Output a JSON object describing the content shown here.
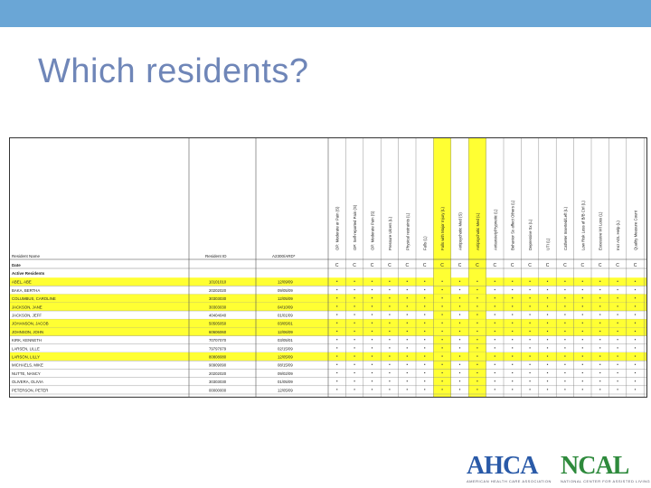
{
  "slide": {
    "title": "Which residents?",
    "topbar_color": "#6aa6d6"
  },
  "sheet": {
    "header_labels": {
      "name": "Resident Name",
      "id": "Resident ID",
      "date": "A2300/ARD*",
      "group_date": "Date",
      "group_active": "Active Residents"
    },
    "column_headers": [
      "OP: Moderate or Pain (S)",
      "OP: Self-reported Pain (S)",
      "OP: Moderate Pain (S)",
      "Pressure Ulcers (L)",
      "Physical restraints (L)",
      "Falls (L)",
      "Falls with Major Injury (L)",
      "Antipsychotic Med (S)",
      "Antipsychotic Med (L)",
      "Antianxiety/Hypnotic (L)",
      "Behavior Sx affect Others (L)",
      "Depressive Sx (L)",
      "UTI (L)",
      "Catheter Inserted/Left (L)",
      "Low Risk Loss of B/B Ctrl (L)",
      "Excessive Wt Loss (L)",
      "Incr ADL Help (L)",
      "Quality Measure Count"
    ],
    "column_row_code": [
      "C",
      "C",
      "C",
      "C",
      "C",
      "C",
      "C",
      "C",
      "C",
      "C",
      "C",
      "C",
      "C",
      "C",
      "C",
      "C",
      "C",
      "C"
    ],
    "highlight_color": "#ffff33",
    "residents": [
      {
        "name": "ABEL, ABE",
        "id": "10101010",
        "date": "12/09/09",
        "hl": true
      },
      {
        "name": "BAKA, BERTHA",
        "id": "20202020",
        "date": "09/05/09",
        "hl": false
      },
      {
        "name": "COLUMBUS, CAROLINE",
        "id": "30303030",
        "date": "12/05/09",
        "hl": true
      },
      {
        "name": "JACKSON, JANE",
        "id": "30303030",
        "date": "04/10/09",
        "hl": true
      },
      {
        "name": "JACKSON, JEFF",
        "id": "40404040",
        "date": "01/01/09",
        "hl": false
      },
      {
        "name": "JOHANSON, JACOB",
        "id": "50505050",
        "date": "03/05/01",
        "hl": true
      },
      {
        "name": "JOHNSON, JOHN",
        "id": "60606060",
        "date": "12/06/09",
        "hl": true
      },
      {
        "name": "KIRK, KENNETH",
        "id": "70707070",
        "date": "03/05/01",
        "hl": false
      },
      {
        "name": "LARSEN, LILLE",
        "id": "79797979",
        "date": "02/15/09",
        "hl": false
      },
      {
        "name": "LARSON, LILLY",
        "id": "80808080",
        "date": "12/05/09",
        "hl": true
      },
      {
        "name": "MICHAELS, MIKE",
        "id": "90909090",
        "date": "08/15/09",
        "hl": false
      },
      {
        "name": "NUTTE, NANCY",
        "id": "20202020",
        "date": "09/02/09",
        "hl": false
      },
      {
        "name": "OLIVERA, OLIVIA",
        "id": "30303030",
        "date": "01/05/09",
        "hl": false
      },
      {
        "name": "PETERSON, PETER",
        "id": "00000000",
        "date": "12/05/09",
        "hl": false
      }
    ]
  },
  "logos": {
    "ahca": "AHCA",
    "ncal": "NCAL",
    "ahca_sub": "AMERICAN HEALTH CARE ASSOCIATION",
    "ncal_sub": "NATIONAL CENTER FOR ASSISTED LIVING"
  }
}
